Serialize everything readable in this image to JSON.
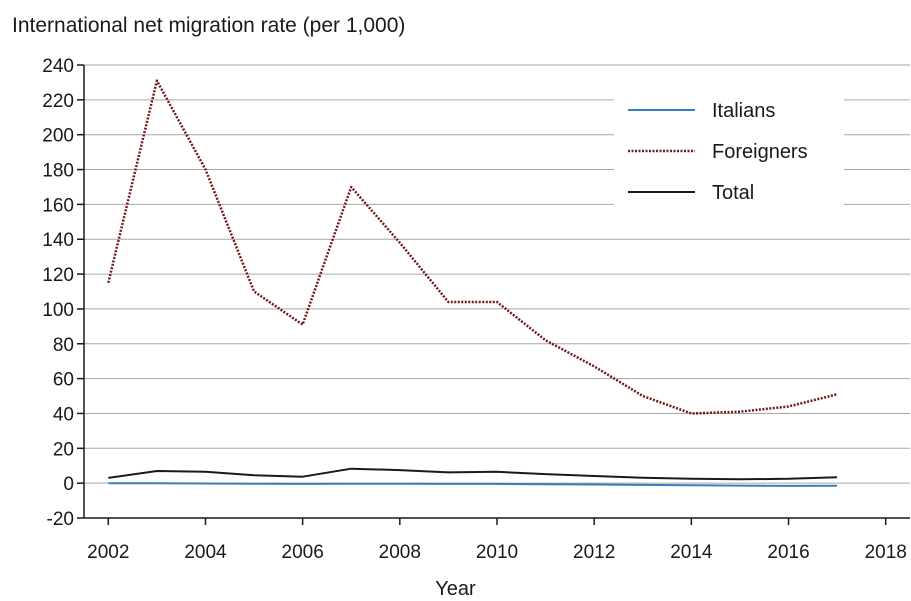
{
  "chart_data": {
    "type": "line",
    "title": "",
    "ylabel": "International net migration rate (per 1,000)",
    "xlabel": "Year",
    "xlim": [
      2001.5,
      2018.5
    ],
    "ylim": [
      -20,
      240
    ],
    "xticks": [
      "2002",
      "2004",
      "2006",
      "2008",
      "2010",
      "2012",
      "2014",
      "2016",
      "2018"
    ],
    "yticks": [
      "240",
      "220",
      "200",
      "180",
      "160",
      "140",
      "120",
      "100",
      "80",
      "60",
      "40",
      "20",
      "0",
      "-20"
    ],
    "grid": "horizontal",
    "legend_position": "top-right",
    "x": [
      2002,
      2003,
      2004,
      2005,
      2006,
      2007,
      2008,
      2009,
      2010,
      2011,
      2012,
      2013,
      2014,
      2015,
      2016,
      2017
    ],
    "series": [
      {
        "name": "Italians",
        "color": "#3a7dbf",
        "style": "solid",
        "values": [
          0,
          0,
          -0.2,
          -0.3,
          -0.4,
          -0.3,
          -0.3,
          -0.4,
          -0.4,
          -0.6,
          -0.8,
          -1.0,
          -1.2,
          -1.4,
          -1.6,
          -1.5
        ]
      },
      {
        "name": "Foreigners",
        "color": "#6e1a1a",
        "style": "dotted",
        "values": [
          115,
          231,
          180,
          110,
          91,
          170,
          138,
          104,
          104,
          82,
          67,
          50,
          40,
          41,
          44,
          51
        ]
      },
      {
        "name": "Total",
        "color": "#1a1a1a",
        "style": "solid",
        "values": [
          3,
          7,
          6.5,
          4.5,
          3.7,
          8.3,
          7.5,
          6.2,
          6.5,
          5.2,
          4.1,
          3.1,
          2.5,
          2.2,
          2.5,
          3.4
        ]
      }
    ]
  }
}
